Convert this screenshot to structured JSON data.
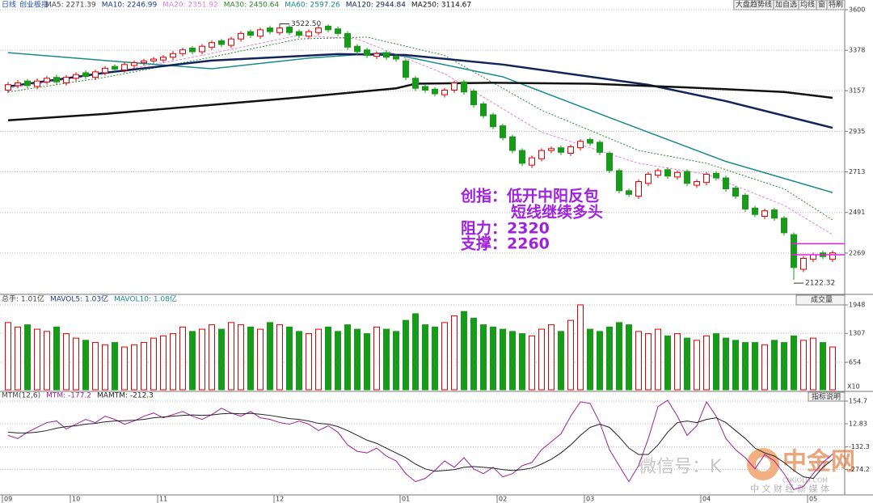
{
  "header": {
    "period": "日线",
    "buttons": [
      "大盘趋势线",
      "加自选",
      "均线",
      "窗",
      "特刷"
    ]
  },
  "annotation": {
    "lines": [
      "创指：低开中阳反包",
      "短线继续多头",
      "阻力：2320",
      "支撑：2260"
    ],
    "color": "#a020e0"
  },
  "watermark": {
    "wechat": "微信号：K",
    "brand": "中金网",
    "site": "CNGOLD.COM",
    "slogan": "中 文 财 经 新 媒 体"
  },
  "chart_data": [
    {
      "type": "candlestick",
      "title": "创业板指",
      "categories": [
        "09",
        null,
        null,
        null,
        null,
        null,
        null,
        "10",
        null,
        null,
        null,
        null,
        null,
        null,
        null,
        null,
        "11",
        null,
        null,
        null,
        null,
        null,
        null,
        null,
        null,
        null,
        null,
        null,
        "12",
        null,
        null,
        null,
        null,
        null,
        null,
        null,
        null,
        null,
        null,
        null,
        null,
        "01",
        null,
        null,
        null,
        null,
        null,
        null,
        null,
        null,
        null,
        "02",
        null,
        null,
        null,
        null,
        null,
        null,
        null,
        null,
        "03",
        null,
        null,
        null,
        null,
        null,
        null,
        null,
        null,
        null,
        null,
        null,
        "04",
        null,
        null,
        null,
        null,
        null,
        null,
        null,
        null,
        null,
        null,
        "05",
        null,
        null
      ],
      "open": [
        3160,
        3185,
        3210,
        3180,
        3205,
        3230,
        3200,
        3225,
        3255,
        3230,
        3255,
        3290,
        3270,
        3295,
        3310,
        3320,
        3325,
        3340,
        3360,
        3390,
        3370,
        3395,
        3430,
        3405,
        3440,
        3480,
        3455,
        3500,
        3475,
        3505,
        3480,
        3455,
        3475,
        3510,
        3495,
        3470,
        3400,
        3380,
        3345,
        3365,
        3345,
        3320,
        3225,
        3180,
        3165,
        3135,
        3160,
        3205,
        3155,
        3085,
        3025,
        2965,
        2905,
        2830,
        2750,
        2785,
        2830,
        2845,
        2815,
        2845,
        2890,
        2875,
        2815,
        2720,
        2610,
        2580,
        2650,
        2695,
        2725,
        2685,
        2715,
        2640,
        2655,
        2705,
        2680,
        2625,
        2585,
        2515,
        2470,
        2505,
        2460,
        2370,
        2180,
        2235,
        2270,
        2235
      ],
      "high": [
        3205,
        3215,
        3222,
        3225,
        3238,
        3245,
        3242,
        3258,
        3268,
        3272,
        3292,
        3302,
        3312,
        3322,
        3332,
        3342,
        3352,
        3374,
        3392,
        3402,
        3412,
        3432,
        3442,
        3452,
        3482,
        3492,
        3502,
        3512,
        3522.5,
        3517,
        3492,
        3492,
        3512,
        3520,
        3507,
        3482,
        3412,
        3392,
        3372,
        3377,
        3357,
        3332,
        3237,
        3192,
        3177,
        3172,
        3212,
        3217,
        3167,
        3097,
        3037,
        2977,
        2917,
        2842,
        2802,
        2842,
        2852,
        2857,
        2862,
        2892,
        2902,
        2887,
        2827,
        2732,
        2622,
        2672,
        2712,
        2732,
        2737,
        2722,
        2727,
        2672,
        2712,
        2717,
        2692,
        2637,
        2597,
        2527,
        2512,
        2517,
        2472,
        2382,
        2252,
        2272,
        2282,
        2282
      ],
      "low": [
        3145,
        3170,
        3170,
        3165,
        3190,
        3190,
        3185,
        3210,
        3220,
        3215,
        3240,
        3260,
        3255,
        3280,
        3295,
        3305,
        3310,
        3325,
        3345,
        3355,
        3355,
        3380,
        3395,
        3390,
        3425,
        3445,
        3440,
        3465,
        3460,
        3460,
        3445,
        3440,
        3460,
        3475,
        3455,
        3380,
        3355,
        3335,
        3330,
        3325,
        3315,
        3215,
        3155,
        3145,
        3125,
        3120,
        3145,
        3135,
        3065,
        3005,
        2945,
        2885,
        2815,
        2745,
        2735,
        2770,
        2815,
        2805,
        2800,
        2830,
        2855,
        2805,
        2705,
        2595,
        2575,
        2565,
        2635,
        2680,
        2675,
        2670,
        2635,
        2625,
        2640,
        2665,
        2605,
        2565,
        2495,
        2465,
        2455,
        2445,
        2365,
        2122.32,
        2165,
        2220,
        2235,
        2220
      ],
      "close": [
        3190,
        3200,
        3185,
        3210,
        3225,
        3205,
        3230,
        3245,
        3235,
        3260,
        3280,
        3275,
        3300,
        3310,
        3320,
        3330,
        3340,
        3360,
        3380,
        3370,
        3400,
        3420,
        3410,
        3440,
        3470,
        3460,
        3490,
        3480,
        3500,
        3475,
        3460,
        3480,
        3500,
        3490,
        3470,
        3395,
        3370,
        3350,
        3360,
        3340,
        3330,
        3230,
        3170,
        3160,
        3140,
        3160,
        3200,
        3150,
        3080,
        3020,
        2960,
        2900,
        2830,
        2760,
        2790,
        2830,
        2840,
        2820,
        2850,
        2880,
        2870,
        2820,
        2720,
        2610,
        2590,
        2660,
        2700,
        2720,
        2690,
        2710,
        2650,
        2660,
        2700,
        2680,
        2620,
        2580,
        2510,
        2480,
        2500,
        2460,
        2380,
        2190,
        2240,
        2260,
        2250,
        2270
      ],
      "up_color": "#e00000",
      "down_color": "#1a9a1a",
      "ylim": [
        2052,
        3653
      ],
      "yticks": [
        3600,
        3378,
        3157,
        2935,
        2713,
        2491,
        2269
      ],
      "grid": true,
      "legend": [
        {
          "label": "MA5: 2271.39",
          "color": "#444444"
        },
        {
          "label": "MA10: 2246.99",
          "color": "#1a3a8a"
        },
        {
          "label": "MA20: 2351.92",
          "color": "#e080e0"
        },
        {
          "label": "MA30: 2450.64",
          "color": "#2a8a2a"
        },
        {
          "label": "MA60: 2597.26",
          "color": "#1a8a8a"
        },
        {
          "label": "MA120: 2944.84",
          "color": "#12245a"
        },
        {
          "label": "MA250: 3114.67",
          "color": "#111111"
        }
      ],
      "overlays": [
        {
          "color": "#e080e0",
          "width": 1,
          "dash": "3 2",
          "x": [
            0,
            10,
            20,
            30,
            36,
            45,
            55,
            65,
            72,
            80,
            85
          ],
          "values": [
            3170,
            3250,
            3350,
            3460,
            3440,
            3250,
            2930,
            2760,
            2700,
            2530,
            2370
          ]
        },
        {
          "color": "#2a8a2a",
          "width": 1,
          "dash": "2 2",
          "x": [
            0,
            10,
            20,
            30,
            37,
            45,
            55,
            65,
            72,
            80,
            85
          ],
          "values": [
            3150,
            3230,
            3330,
            3440,
            3450,
            3350,
            3050,
            2830,
            2760,
            2620,
            2450
          ]
        },
        {
          "color": "#1a8a8a",
          "width": 1.5,
          "dash": "none",
          "x": [
            0,
            10,
            21,
            31,
            39,
            51,
            63,
            74,
            85
          ],
          "values": [
            3365,
            3322,
            3277,
            3335,
            3365,
            3233,
            2990,
            2770,
            2600
          ]
        },
        {
          "color": "#12245a",
          "width": 2.5,
          "dash": "none",
          "x": [
            0,
            10,
            21,
            34,
            41,
            51,
            66,
            74,
            85
          ],
          "values": [
            3180,
            3255,
            3322,
            3357,
            3352,
            3300,
            3189,
            3100,
            2954
          ]
        },
        {
          "color": "#111111",
          "width": 2.5,
          "dash": "none",
          "x": [
            0,
            10,
            20,
            30,
            40,
            42,
            50,
            60,
            70,
            80,
            85
          ],
          "values": [
            2995,
            3030,
            3075,
            3120,
            3170,
            3195,
            3200,
            3195,
            3175,
            3150,
            3118
          ]
        }
      ],
      "extremes": [
        {
          "value": 3522.5,
          "label": "3522.50"
        },
        {
          "value": 2122.32,
          "label": "2122.32"
        }
      ],
      "levels": {
        "values": [
          2320,
          2260
        ],
        "color": "#e020e0"
      }
    },
    {
      "type": "bar",
      "values": [
        1550,
        1450,
        1500,
        1400,
        1350,
        1450,
        1300,
        1200,
        1150,
        1100,
        1050,
        1100,
        1000,
        1050,
        1100,
        1200,
        1250,
        1300,
        1450,
        1350,
        1400,
        1500,
        1400,
        1550,
        1500,
        1450,
        1400,
        1550,
        1500,
        1450,
        1350,
        1300,
        1400,
        1450,
        1350,
        1500,
        1400,
        1300,
        1450,
        1400,
        1350,
        1600,
        1750,
        1500,
        1450,
        1550,
        1700,
        1800,
        1650,
        1500,
        1450,
        1400,
        1350,
        1300,
        1250,
        1400,
        1500,
        1350,
        1600,
        1950,
        1400,
        1350,
        1450,
        1550,
        1500,
        1350,
        1300,
        1400,
        1250,
        1300,
        1200,
        1150,
        1250,
        1300,
        1200,
        1150,
        1100,
        1100,
        1050,
        1150,
        1100,
        1250,
        1150,
        1200,
        1100,
        1000
      ],
      "ylim": [
        35,
        2040
      ],
      "yticks": [
        1948,
        1307,
        654
      ],
      "grid": true,
      "legend": [
        {
          "label": "总手: 1.01亿",
          "color": "#444444"
        },
        {
          "label": "MAVOL5: 1.03亿",
          "color": "#1a3a8a"
        },
        {
          "label": "MAVOL10: 1.08亿",
          "color": "#1a8a8a"
        }
      ],
      "indicator": "成交量",
      "unit": "X10"
    },
    {
      "type": "line",
      "series": [
        {
          "color": "#a0209a",
          "values": [
            -60,
            -80,
            -40,
            -10,
            20,
            30,
            -20,
            10,
            40,
            20,
            60,
            40,
            10,
            30,
            60,
            80,
            50,
            70,
            90,
            60,
            40,
            70,
            110,
            80,
            60,
            90,
            50,
            40,
            20,
            10,
            30,
            10,
            -30,
            0,
            -40,
            -120,
            -160,
            -170,
            -140,
            -190,
            -220,
            -300,
            -350,
            -330,
            -280,
            -220,
            -260,
            -200,
            -270,
            -300,
            -260,
            -320,
            -300,
            -250,
            -230,
            -150,
            -100,
            -50,
            60,
            150,
            140,
            20,
            -150,
            -250,
            -350,
            -250,
            -80,
            120,
            160,
            60,
            -60,
            0,
            150,
            60,
            -80,
            -150,
            -200,
            -270,
            -180,
            -220,
            -300,
            -400,
            -380,
            -300,
            -230,
            -177.2
          ]
        },
        {
          "color": "#222222",
          "values": [
            -40,
            -45,
            -45,
            -40,
            -30,
            -15,
            -5,
            0,
            10,
            15,
            25,
            30,
            32,
            35,
            40,
            50,
            55,
            60,
            65,
            68,
            65,
            68,
            75,
            78,
            75,
            78,
            72,
            65,
            55,
            45,
            40,
            30,
            15,
            10,
            -5,
            -30,
            -60,
            -90,
            -110,
            -140,
            -170,
            -200,
            -240,
            -270,
            -285,
            -280,
            -275,
            -260,
            -255,
            -260,
            -265,
            -275,
            -280,
            -275,
            -265,
            -240,
            -210,
            -170,
            -120,
            -60,
            -10,
            10,
            -10,
            -70,
            -140,
            -180,
            -180,
            -120,
            -40,
            20,
            30,
            20,
            40,
            50,
            20,
            -30,
            -80,
            -140,
            -170,
            -190,
            -230,
            -280,
            -320,
            -330,
            -260,
            -212.3
          ]
        }
      ],
      "ylim": [
        -423,
        185
      ],
      "yticks": [
        154.7,
        12.83,
        -132.3,
        -274.2
      ],
      "grid": true,
      "legend": [
        {
          "label": "MTM(12,6)",
          "color": "#444444"
        },
        {
          "label": "MTM: -177.2",
          "color": "#a0209a"
        },
        {
          "label": "MAMTM: -212.3",
          "color": "#222222"
        }
      ],
      "help": "指标说明"
    }
  ]
}
